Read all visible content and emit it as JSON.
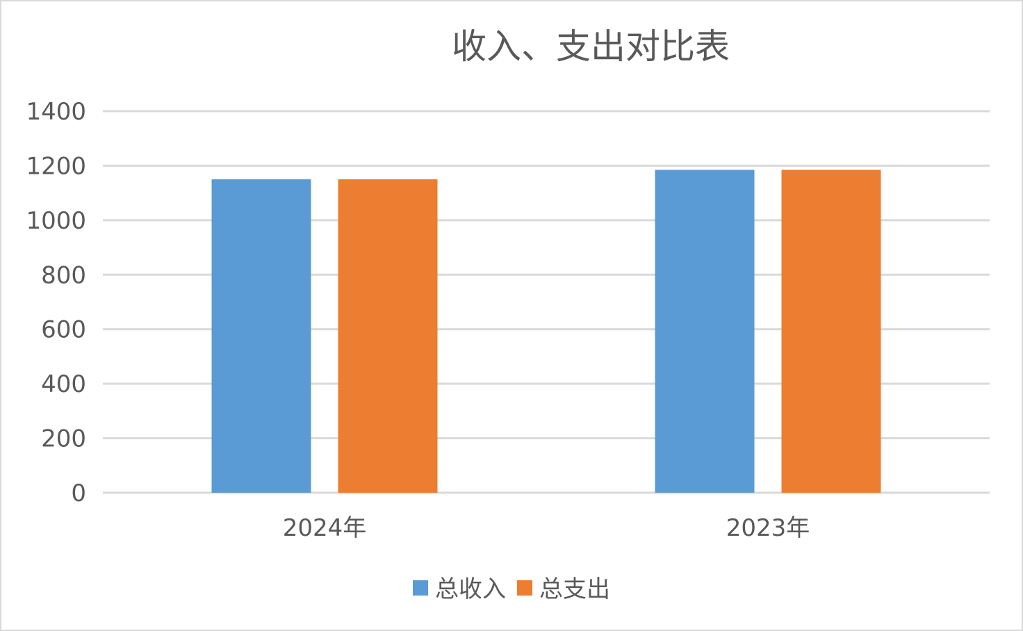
{
  "chart_data": {
    "type": "bar",
    "title": "收入、支出对比表",
    "categories": [
      "2024年",
      "2023年"
    ],
    "series": [
      {
        "name": "总收入",
        "values": [
          1150,
          1185
        ],
        "color": "#5b9bd5"
      },
      {
        "name": "总支出",
        "values": [
          1150,
          1185
        ],
        "color": "#ed7d31"
      }
    ],
    "y_ticks": [
      "0",
      "200",
      "400",
      "600",
      "800",
      "1000",
      "1200",
      "1400"
    ],
    "ylim": [
      0,
      1400
    ],
    "xlabel": "",
    "ylabel": "",
    "grid": true,
    "legend_position": "bottom"
  }
}
